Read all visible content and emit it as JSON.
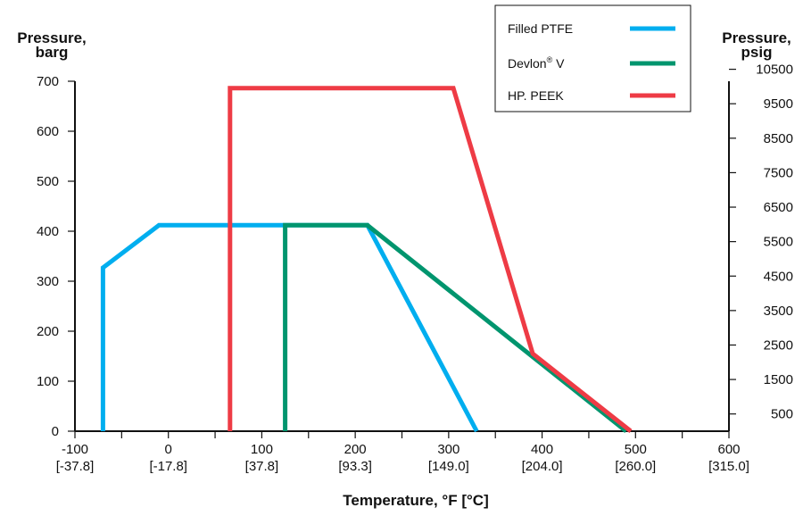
{
  "chart_data": {
    "type": "line",
    "title": "",
    "x_axis": {
      "label": "Temperature, °F [°C]",
      "range": [
        -100,
        600
      ],
      "ticks": [
        {
          "value": -100,
          "label": "-100",
          "sublabel": "[-37.8]"
        },
        {
          "value": 0,
          "label": "0",
          "sublabel": "[-17.8]"
        },
        {
          "value": 100,
          "label": "100",
          "sublabel": "[37.8]"
        },
        {
          "value": 200,
          "label": "200",
          "sublabel": "[93.3]"
        },
        {
          "value": 300,
          "label": "300",
          "sublabel": "[149.0]"
        },
        {
          "value": 400,
          "label": "400",
          "sublabel": "[204.0]"
        },
        {
          "value": 500,
          "label": "500",
          "sublabel": "[260.0]"
        },
        {
          "value": 600,
          "label": "600",
          "sublabel": "[315.0]"
        }
      ]
    },
    "y_axis_left": {
      "label_line1": "Pressure,",
      "label_line2": "barg",
      "range": [
        0,
        700
      ],
      "ticks": [
        0,
        100,
        200,
        300,
        400,
        500,
        600,
        700
      ]
    },
    "y_axis_right": {
      "label_line1": "Pressure,",
      "label_line2": "psig",
      "ticks": [
        500,
        1500,
        2500,
        3500,
        4500,
        5500,
        6500,
        7500,
        8500,
        9500,
        10500
      ]
    },
    "legend_position": "top-right",
    "grid": false,
    "series": [
      {
        "name": "Filled PTFE",
        "color": "#00aeef",
        "x": [
          -70,
          -70,
          -10,
          213,
          330
        ],
        "y": [
          0,
          327,
          412,
          412,
          0
        ]
      },
      {
        "name": "Devlon® V",
        "color": "#00956e",
        "x": [
          125,
          125,
          213,
          490
        ],
        "y": [
          0,
          412,
          412,
          0
        ]
      },
      {
        "name": "HP. PEEK",
        "color": "#ee3b45",
        "x": [
          66,
          66,
          305,
          390,
          495
        ],
        "y": [
          0,
          686,
          686,
          155,
          0
        ]
      }
    ]
  }
}
